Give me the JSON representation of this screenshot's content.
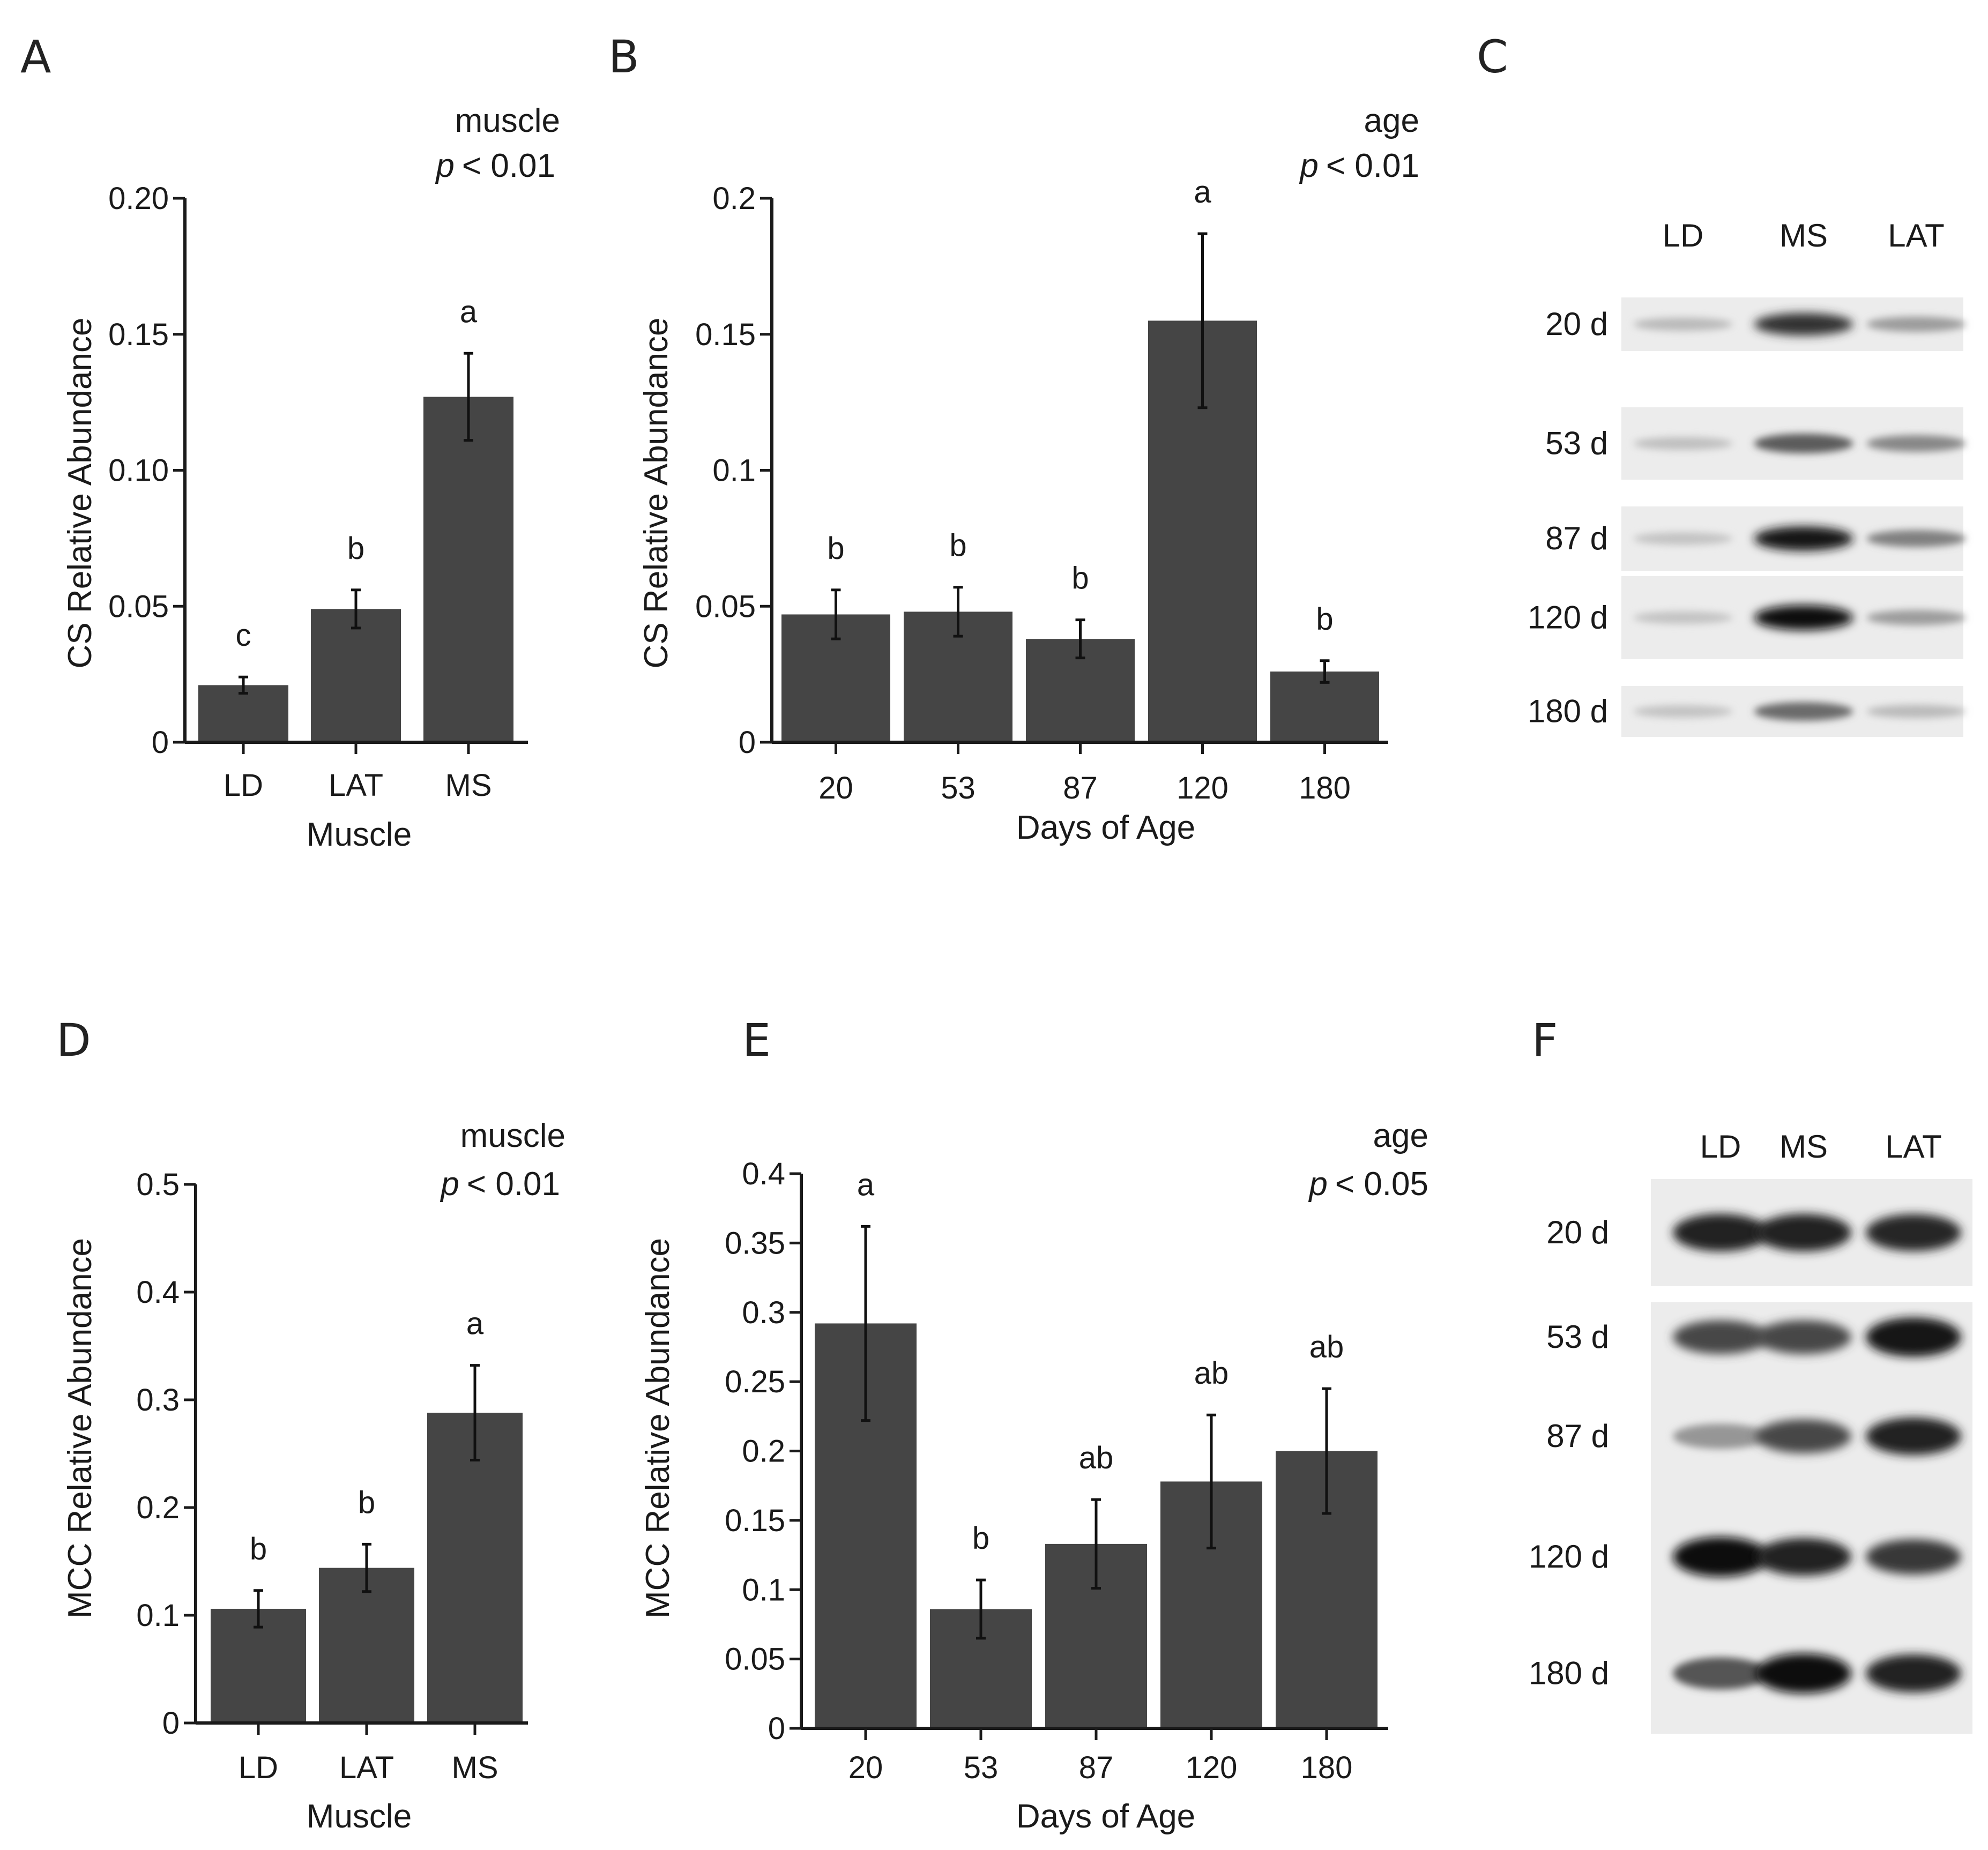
{
  "colors": {
    "bar": "#454545",
    "axis": "#1a1a1a",
    "text": "#1a1a1a"
  },
  "chart_data": [
    {
      "panel": "A",
      "type": "bar",
      "categories": [
        "LD",
        "LAT",
        "MS"
      ],
      "values": [
        0.021,
        0.049,
        0.127
      ],
      "errors": [
        0.003,
        0.007,
        0.016
      ],
      "sig_letters": [
        "c",
        "b",
        "a"
      ],
      "ylim": [
        0,
        0.2
      ],
      "yticks": [
        "0",
        "0.05",
        "0.10",
        "0.15",
        "0.20"
      ],
      "ytick_values": [
        0,
        0.05,
        0.1,
        0.15,
        0.2
      ],
      "xlabel": "Muscle",
      "ylabel": "CS Relative Abundance",
      "stat_label": "muscle",
      "p_symbol": "p",
      "p_text": "< 0.01"
    },
    {
      "panel": "B",
      "type": "bar",
      "categories": [
        "20",
        "53",
        "87",
        "120",
        "180"
      ],
      "values": [
        0.047,
        0.048,
        0.038,
        0.155,
        0.026
      ],
      "errors": [
        0.009,
        0.009,
        0.007,
        0.032,
        0.004
      ],
      "sig_letters": [
        "b",
        "b",
        "b",
        "a",
        "b"
      ],
      "ylim": [
        0,
        0.2
      ],
      "yticks": [
        "0",
        "0.05",
        "0.1",
        "0.15",
        "0.2"
      ],
      "ytick_values": [
        0,
        0.05,
        0.1,
        0.15,
        0.2
      ],
      "xlabel": "Days of Age",
      "ylabel": "CS Relative Abundance",
      "stat_label": "age",
      "p_symbol": "p",
      "p_text": "< 0.01"
    },
    {
      "panel": "D",
      "type": "bar",
      "categories": [
        "LD",
        "LAT",
        "MS"
      ],
      "values": [
        0.106,
        0.144,
        0.288
      ],
      "errors": [
        0.017,
        0.022,
        0.044
      ],
      "sig_letters": [
        "b",
        "b",
        "a"
      ],
      "ylim": [
        0,
        0.5
      ],
      "yticks": [
        "0",
        "0.1",
        "0.2",
        "0.3",
        "0.4",
        "0.5"
      ],
      "ytick_values": [
        0,
        0.1,
        0.2,
        0.3,
        0.4,
        0.5
      ],
      "xlabel": "Muscle",
      "ylabel": "MCC Relative Abundance",
      "stat_label": "muscle",
      "p_symbol": "p",
      "p_text": "< 0.01"
    },
    {
      "panel": "E",
      "type": "bar",
      "categories": [
        "20",
        "53",
        "87",
        "120",
        "180"
      ],
      "values": [
        0.292,
        0.086,
        0.133,
        0.178,
        0.2
      ],
      "errors": [
        0.07,
        0.021,
        0.032,
        0.048,
        0.045
      ],
      "sig_letters": [
        "a",
        "b",
        "ab",
        "ab",
        "ab"
      ],
      "ylim": [
        0,
        0.4
      ],
      "yticks": [
        "0",
        "0.05",
        "0.1",
        "0.15",
        "0.2",
        "0.25",
        "0.3",
        "0.35",
        "0.4"
      ],
      "ytick_values": [
        0,
        0.05,
        0.1,
        0.15,
        0.2,
        0.25,
        0.3,
        0.35,
        0.4
      ],
      "xlabel": "Days of Age",
      "ylabel": "MCC Relative Abundance",
      "stat_label": "age",
      "p_symbol": "p",
      "p_text": "< 0.05"
    }
  ],
  "blots": [
    {
      "panel": "C",
      "lanes": [
        "LD",
        "MS",
        "LAT"
      ],
      "rows": [
        {
          "label": "20 d",
          "intensity": [
            0.18,
            0.82,
            0.32
          ]
        },
        {
          "label": "53 d",
          "intensity": [
            0.16,
            0.62,
            0.42
          ]
        },
        {
          "label": "87 d",
          "intensity": [
            0.14,
            0.95,
            0.45
          ]
        },
        {
          "label": "120 d",
          "intensity": [
            0.14,
            1.0,
            0.32
          ]
        },
        {
          "label": "180 d",
          "intensity": [
            0.14,
            0.55,
            0.18
          ]
        }
      ]
    },
    {
      "panel": "F",
      "lanes": [
        "LD",
        "MS",
        "LAT"
      ],
      "rows": [
        {
          "label": "20 d",
          "intensity": [
            0.88,
            0.88,
            0.86
          ]
        },
        {
          "label": "53 d",
          "intensity": [
            0.72,
            0.72,
            0.95
          ]
        },
        {
          "label": "87 d",
          "intensity": [
            0.35,
            0.72,
            0.88
          ]
        },
        {
          "label": "120 d",
          "intensity": [
            0.98,
            0.88,
            0.78
          ]
        },
        {
          "label": "180 d",
          "intensity": [
            0.65,
            0.98,
            0.9
          ]
        }
      ]
    }
  ]
}
